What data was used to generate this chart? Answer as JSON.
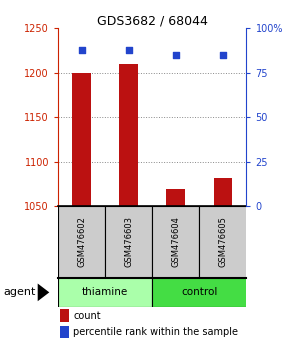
{
  "title": "GDS3682 / 68044",
  "samples": [
    "GSM476602",
    "GSM476603",
    "GSM476604",
    "GSM476605"
  ],
  "bar_values": [
    1200,
    1210,
    1070,
    1082
  ],
  "dot_values": [
    88,
    88,
    85,
    85
  ],
  "bar_color": "#bb1111",
  "dot_color": "#2244cc",
  "ylim_left": [
    1050,
    1250
  ],
  "ylim_right": [
    0,
    100
  ],
  "yticks_left": [
    1050,
    1100,
    1150,
    1200,
    1250
  ],
  "yticks_right": [
    0,
    25,
    50,
    75,
    100
  ],
  "ytick_labels_right": [
    "0",
    "25",
    "50",
    "75",
    "100%"
  ],
  "groups": [
    {
      "label": "thiamine",
      "indices": [
        0,
        1
      ],
      "color": "#aaffaa"
    },
    {
      "label": "control",
      "indices": [
        2,
        3
      ],
      "color": "#44dd44"
    }
  ],
  "agent_label": "agent",
  "legend_count_label": "count",
  "legend_pct_label": "percentile rank within the sample",
  "left_tick_color": "#cc2200",
  "right_tick_color": "#2244cc",
  "grid_color": "#888888",
  "sample_box_color": "#cccccc",
  "bar_baseline": 1050,
  "bar_width": 0.4
}
